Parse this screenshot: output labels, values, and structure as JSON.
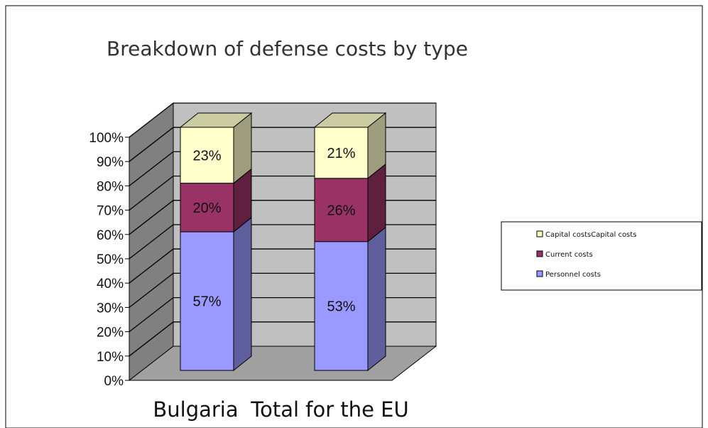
{
  "chart_data": {
    "type": "bar",
    "stacked": true,
    "title": "Breakdown of defense costs by type",
    "categories": [
      "Bulgaria",
      "Total for the EU"
    ],
    "series": [
      {
        "name": "Personnel costs",
        "values": [
          57,
          53
        ],
        "labels": [
          "57%",
          "53%"
        ],
        "color": "#9999ff"
      },
      {
        "name": "Current costs",
        "values": [
          20,
          26
        ],
        "labels": [
          "20%",
          "26%"
        ],
        "color": "#993366"
      },
      {
        "name": "Capital costsCapital costs",
        "values": [
          23,
          21
        ],
        "labels": [
          "23%",
          "21%"
        ],
        "color": "#ffffcc"
      }
    ],
    "ytick_labels": [
      "0%",
      "10%",
      "20%",
      "30%",
      "40%",
      "50%",
      "60%",
      "70%",
      "80%",
      "90%",
      "100%"
    ],
    "ylim": [
      0,
      100
    ],
    "grid": true,
    "legend_position": "right",
    "legend_order": [
      "Capital costsCapital costs",
      "Current costs",
      "Personnel costs"
    ]
  },
  "colors": {
    "back_wall": "#c0c0c0",
    "side_wall": "#808080",
    "floor": "#a0a0a0",
    "border": "#000000"
  }
}
